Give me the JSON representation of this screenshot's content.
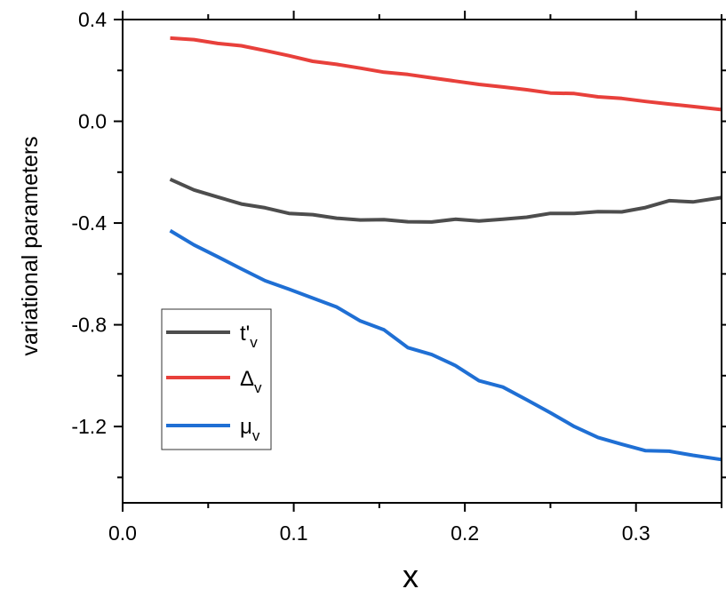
{
  "chart_data": {
    "type": "line",
    "xlabel": "x",
    "ylabel": "variational parameters",
    "xlim": [
      0.0,
      0.35
    ],
    "ylim": [
      -1.5,
      0.4
    ],
    "xticks": [
      0.0,
      0.1,
      0.2,
      0.3
    ],
    "xtick_labels": [
      "0.0",
      "0.1",
      "0.2",
      "0.3"
    ],
    "yticks": [
      0.4,
      0.0,
      -0.4,
      -0.8,
      -1.2
    ],
    "ytick_labels": [
      "0.4",
      "0.0",
      "-0.4",
      "-0.8",
      "-1.2"
    ],
    "grid": false,
    "legend_position": "lower-left",
    "x": [
      0.0278,
      0.0417,
      0.0556,
      0.0694,
      0.0833,
      0.0972,
      0.1111,
      0.125,
      0.1389,
      0.1528,
      0.1667,
      0.1806,
      0.1944,
      0.2083,
      0.2222,
      0.2361,
      0.25,
      0.2639,
      0.2778,
      0.2917,
      0.3056,
      0.3194,
      0.3333,
      0.35
    ],
    "series": [
      {
        "name": "t'",
        "subscript": "v",
        "color": "#4d4d4d",
        "values": [
          -0.228,
          -0.27,
          -0.298,
          -0.325,
          -0.34,
          -0.362,
          -0.367,
          -0.381,
          -0.388,
          -0.387,
          -0.395,
          -0.396,
          -0.385,
          -0.392,
          -0.385,
          -0.377,
          -0.362,
          -0.362,
          -0.355,
          -0.356,
          -0.339,
          -0.312,
          -0.317,
          -0.3
        ]
      },
      {
        "name": "Δ",
        "subscript": "v",
        "color": "#e8403b",
        "values": [
          0.327,
          0.321,
          0.306,
          0.297,
          0.278,
          0.258,
          0.236,
          0.224,
          0.209,
          0.193,
          0.184,
          0.171,
          0.158,
          0.145,
          0.135,
          0.124,
          0.111,
          0.109,
          0.096,
          0.09,
          0.078,
          0.068,
          0.058,
          0.046
        ]
      },
      {
        "name": "μ",
        "subscript": "v",
        "color": "#1f6fd4",
        "values": [
          -0.43,
          -0.486,
          -0.533,
          -0.58,
          -0.627,
          -0.66,
          -0.695,
          -0.73,
          -0.785,
          -0.82,
          -0.89,
          -0.917,
          -0.96,
          -1.02,
          -1.045,
          -1.095,
          -1.146,
          -1.2,
          -1.243,
          -1.27,
          -1.295,
          -1.297,
          -1.313,
          -1.33
        ]
      }
    ]
  }
}
